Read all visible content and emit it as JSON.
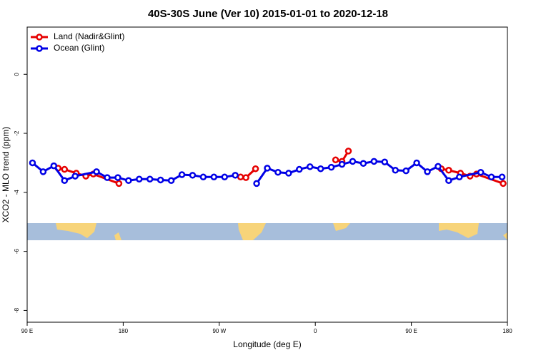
{
  "chart_data": {
    "type": "line",
    "title": "40S-30S June (Ver 10)   2015-01-01 to 2020-12-18",
    "x_label": "Longitude (deg E)",
    "y_label": "XCO2 - MLO trend (ppm)",
    "xlim": [
      90,
      540
    ],
    "xticks": [
      {
        "value": 90,
        "label": "90 E"
      },
      {
        "value": 180,
        "label": "180"
      },
      {
        "value": 270,
        "label": "90 W"
      },
      {
        "value": 360,
        "label": "0"
      },
      {
        "value": 450,
        "label": "90 E"
      },
      {
        "value": 540,
        "label": "180"
      }
    ],
    "ylim": [
      -8.4,
      1.6
    ],
    "yticks": [
      0,
      -2,
      -4,
      -6,
      -8
    ],
    "legend": "top-left",
    "series": [
      {
        "name": "Land (Nadir&Glint)",
        "color": "#e60000",
        "x": [
          119,
          125,
          136,
          145,
          152,
          176,
          230,
          290,
          295,
          304,
          340,
          379,
          385,
          391,
          430,
          478,
          485,
          496,
          505,
          511,
          536
        ],
        "values": [
          -3.18,
          -3.22,
          -3.35,
          -3.45,
          -3.38,
          -3.7,
          null,
          -3.48,
          -3.5,
          -3.2,
          null,
          -2.9,
          -2.95,
          -2.6,
          null,
          -3.2,
          -3.25,
          -3.35,
          -3.45,
          -3.38,
          -3.7
        ]
      },
      {
        "name": "Ocean (Glint)",
        "color": "#0000e6",
        "x": [
          95,
          105,
          115,
          125,
          135,
          155,
          165,
          175,
          185,
          195,
          205,
          215,
          225,
          235,
          245,
          255,
          265,
          275,
          285,
          295,
          305,
          315,
          325,
          335,
          345,
          355,
          365,
          375,
          385,
          395,
          405,
          415,
          425,
          435,
          445,
          455,
          465,
          475,
          485,
          495,
          515,
          525,
          535
        ],
        "values": [
          -3.0,
          -3.3,
          -3.1,
          -3.6,
          -3.45,
          -3.3,
          -3.5,
          -3.5,
          -3.6,
          -3.55,
          -3.55,
          -3.58,
          -3.6,
          -3.4,
          -3.42,
          -3.48,
          -3.48,
          -3.48,
          -3.42,
          null,
          -3.7,
          -3.18,
          -3.32,
          -3.35,
          -3.22,
          -3.13,
          -3.2,
          -3.15,
          -3.05,
          -2.95,
          -3.02,
          -2.95,
          -2.97,
          -3.25,
          -3.27,
          -3.0,
          -3.3,
          -3.12,
          -3.6,
          -3.48,
          -3.32,
          -3.48,
          -3.48
        ]
      }
    ]
  }
}
